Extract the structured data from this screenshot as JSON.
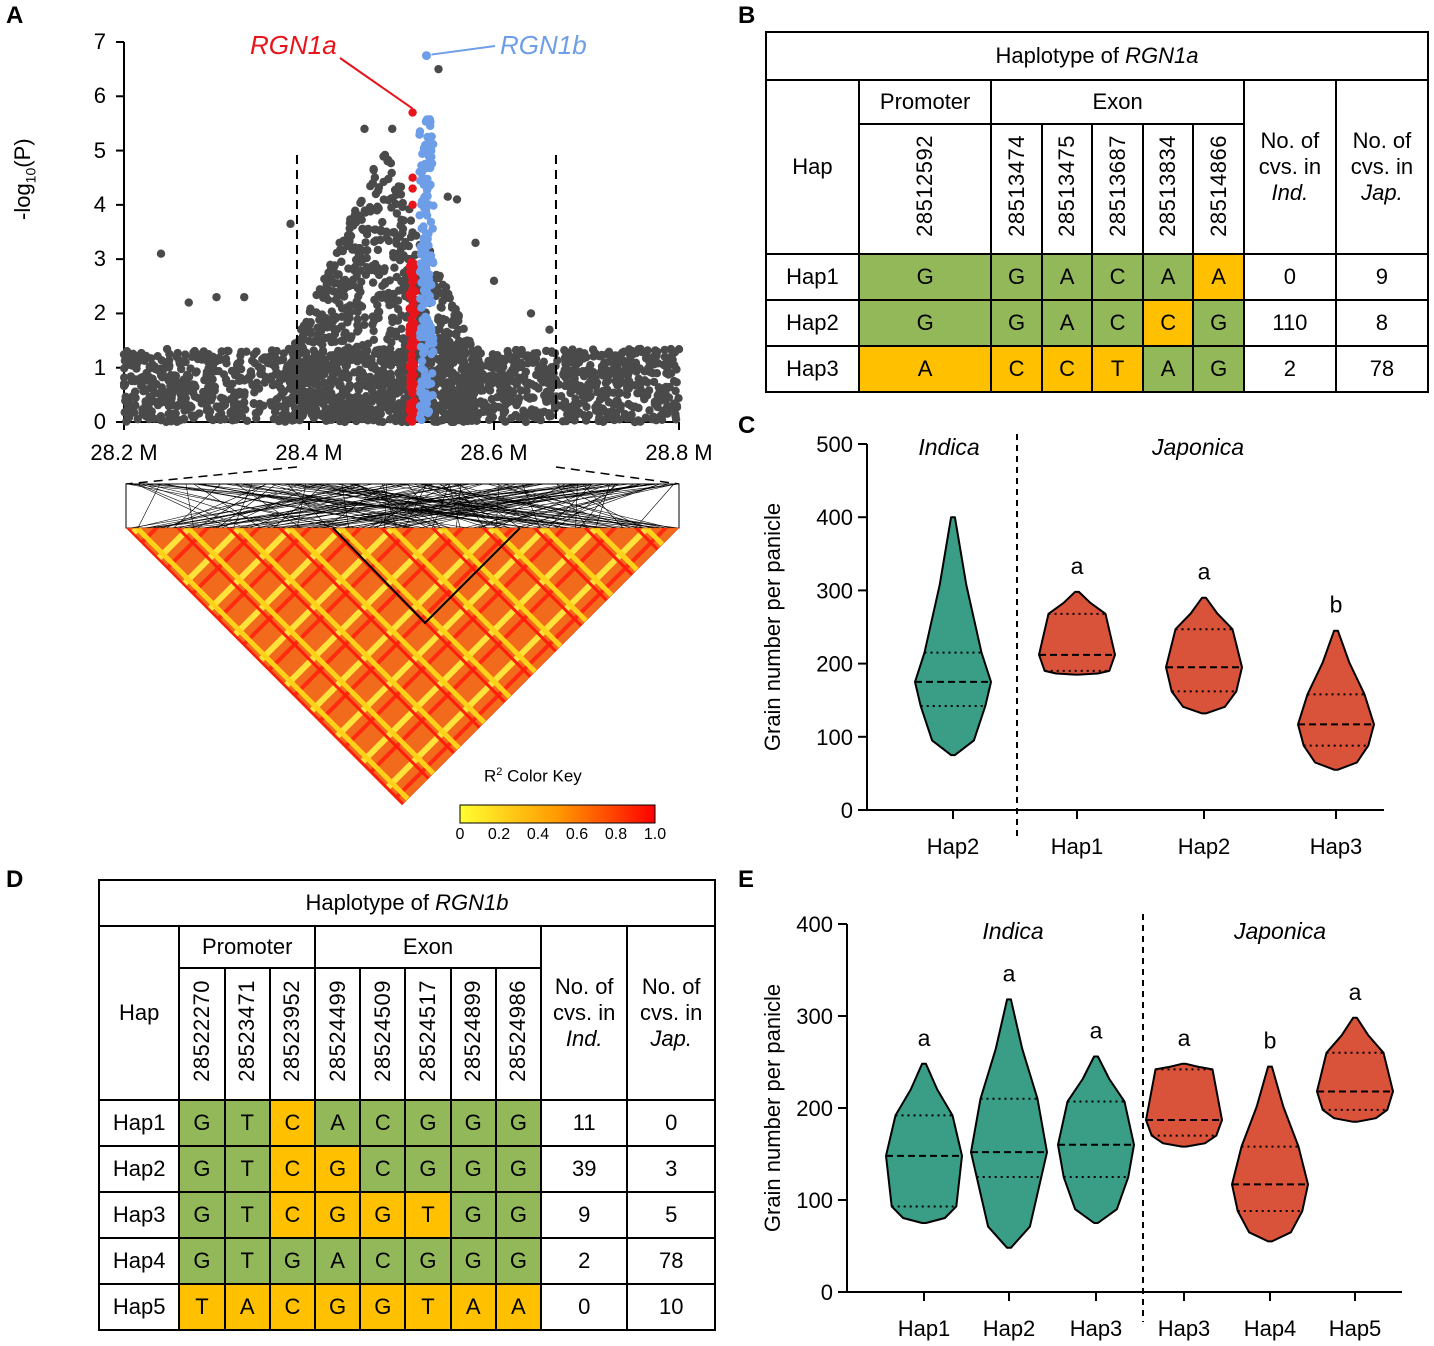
{
  "panels": {
    "a": "A",
    "b": "B",
    "c": "C",
    "d": "D",
    "e": "E"
  },
  "panel_a": {
    "ylabel_prefix": "-log",
    "ylabel_sub": "10",
    "ylabel_suffix": "(P)",
    "yticks": [
      "0",
      "1",
      "2",
      "3",
      "4",
      "5",
      "6",
      "7"
    ],
    "xticks": [
      "28.2 M",
      "28.4 M",
      "28.6 M",
      "28.8 M"
    ],
    "gene_a": "RGN1a",
    "gene_b": "RGN1b",
    "colors": {
      "background_points": "#4a4a4a",
      "rgn1a": "#e8141b",
      "rgn1b": "#6f9ee8"
    },
    "r2_key": {
      "label": "R",
      "sup": "2",
      "label_suffix": " Color Key",
      "ticks": [
        "0",
        "0.2",
        "0.4",
        "0.6",
        "0.8",
        "1.0"
      ]
    }
  },
  "table_b": {
    "title_prefix": "Haplotype of ",
    "title_gene": "RGN1a",
    "hap_header": "Hap",
    "promoter_label": "Promoter",
    "exon_label": "Exon",
    "positions": [
      "28512592",
      "28513474",
      "28513475",
      "28513687",
      "28513834",
      "28514866"
    ],
    "ind_header": [
      "No. of",
      "cvs. in",
      "Ind."
    ],
    "jap_header": [
      "No. of",
      "cvs. in",
      "Jap."
    ],
    "rows": [
      {
        "hap": "Hap1",
        "alleles": [
          "G",
          "G",
          "A",
          "C",
          "A",
          "A"
        ],
        "colors": [
          "g",
          "g",
          "g",
          "g",
          "g",
          "o"
        ],
        "ind": "0",
        "jap": "9"
      },
      {
        "hap": "Hap2",
        "alleles": [
          "G",
          "G",
          "A",
          "C",
          "C",
          "G"
        ],
        "colors": [
          "g",
          "g",
          "g",
          "g",
          "o",
          "g"
        ],
        "ind": "110",
        "jap": "8"
      },
      {
        "hap": "Hap3",
        "alleles": [
          "A",
          "C",
          "C",
          "T",
          "A",
          "G"
        ],
        "colors": [
          "o",
          "o",
          "o",
          "o",
          "g",
          "g"
        ],
        "ind": "2",
        "jap": "78"
      }
    ]
  },
  "table_d": {
    "title_prefix": "Haplotype of ",
    "title_gene": "RGN1b",
    "hap_header": "Hap",
    "promoter_label": "Promoter",
    "exon_label": "Exon",
    "positions": [
      "28522270",
      "28523471",
      "28523952",
      "28524499",
      "28524509",
      "28524517",
      "28524899",
      "28524986"
    ],
    "ind_header": [
      "No. of",
      "cvs. in",
      "Ind."
    ],
    "jap_header": [
      "No. of",
      "cvs. in",
      "Jap."
    ],
    "rows": [
      {
        "hap": "Hap1",
        "alleles": [
          "G",
          "T",
          "C",
          "A",
          "C",
          "G",
          "G",
          "G"
        ],
        "colors": [
          "g",
          "g",
          "o",
          "g",
          "g",
          "g",
          "g",
          "g"
        ],
        "ind": "11",
        "jap": "0"
      },
      {
        "hap": "Hap2",
        "alleles": [
          "G",
          "T",
          "C",
          "G",
          "C",
          "G",
          "G",
          "G"
        ],
        "colors": [
          "g",
          "g",
          "o",
          "o",
          "g",
          "g",
          "g",
          "g"
        ],
        "ind": "39",
        "jap": "3"
      },
      {
        "hap": "Hap3",
        "alleles": [
          "G",
          "T",
          "C",
          "G",
          "G",
          "T",
          "G",
          "G"
        ],
        "colors": [
          "g",
          "g",
          "o",
          "o",
          "o",
          "o",
          "g",
          "g"
        ],
        "ind": "9",
        "jap": "5"
      },
      {
        "hap": "Hap4",
        "alleles": [
          "G",
          "T",
          "G",
          "A",
          "C",
          "G",
          "G",
          "G"
        ],
        "colors": [
          "g",
          "g",
          "g",
          "g",
          "g",
          "g",
          "g",
          "g"
        ],
        "ind": "2",
        "jap": "78"
      },
      {
        "hap": "Hap5",
        "alleles": [
          "T",
          "A",
          "C",
          "G",
          "G",
          "T",
          "A",
          "A"
        ],
        "colors": [
          "o",
          "o",
          "o",
          "o",
          "o",
          "o",
          "o",
          "o"
        ],
        "ind": "0",
        "jap": "10"
      }
    ]
  },
  "chart_data": [
    {
      "id": "C",
      "type": "violin",
      "title": "",
      "ylabel": "Grain number per panicle",
      "ylim": [
        0,
        500
      ],
      "yticks": [
        0,
        100,
        200,
        300,
        400,
        500
      ],
      "group_labels": [
        "Indica",
        "Japonica"
      ],
      "colors": {
        "indica": "#3a9e86",
        "japonica": "#d9523a"
      },
      "series": [
        {
          "name": "Hap2",
          "group": "Indica",
          "min": 75,
          "max": 400,
          "median": 175,
          "q1": 142,
          "q3": 215,
          "letter": ""
        },
        {
          "name": "Hap1",
          "group": "Japonica",
          "min": 185,
          "max": 298,
          "median": 212,
          "q1": 190,
          "q3": 268,
          "letter": "a"
        },
        {
          "name": "Hap2",
          "group": "Japonica",
          "min": 132,
          "max": 290,
          "median": 195,
          "q1": 162,
          "q3": 247,
          "letter": "a"
        },
        {
          "name": "Hap3",
          "group": "Japonica",
          "min": 55,
          "max": 245,
          "median": 117,
          "q1": 88,
          "q3": 158,
          "letter": "b"
        }
      ]
    },
    {
      "id": "E",
      "type": "violin",
      "title": "",
      "ylabel": "Grain number per panicle",
      "ylim": [
        0,
        400
      ],
      "yticks": [
        0,
        100,
        200,
        300,
        400
      ],
      "group_labels": [
        "Indica",
        "Japonica"
      ],
      "colors": {
        "indica": "#3a9e86",
        "japonica": "#d9523a"
      },
      "series": [
        {
          "name": "Hap1",
          "group": "Indica",
          "min": 75,
          "max": 248,
          "median": 148,
          "q1": 93,
          "q3": 192,
          "letter": "a"
        },
        {
          "name": "Hap2",
          "group": "Indica",
          "min": 48,
          "max": 318,
          "median": 152,
          "q1": 125,
          "q3": 210,
          "letter": "a"
        },
        {
          "name": "Hap3",
          "group": "Indica",
          "min": 75,
          "max": 256,
          "median": 160,
          "q1": 125,
          "q3": 207,
          "letter": "a"
        },
        {
          "name": "Hap3",
          "group": "Japonica",
          "min": 158,
          "max": 248,
          "median": 187,
          "q1": 170,
          "q3": 242,
          "letter": "a"
        },
        {
          "name": "Hap4",
          "group": "Japonica",
          "min": 55,
          "max": 245,
          "median": 117,
          "q1": 88,
          "q3": 158,
          "letter": "b"
        },
        {
          "name": "Hap5",
          "group": "Japonica",
          "min": 185,
          "max": 298,
          "median": 218,
          "q1": 198,
          "q3": 260,
          "letter": "a"
        }
      ]
    }
  ]
}
